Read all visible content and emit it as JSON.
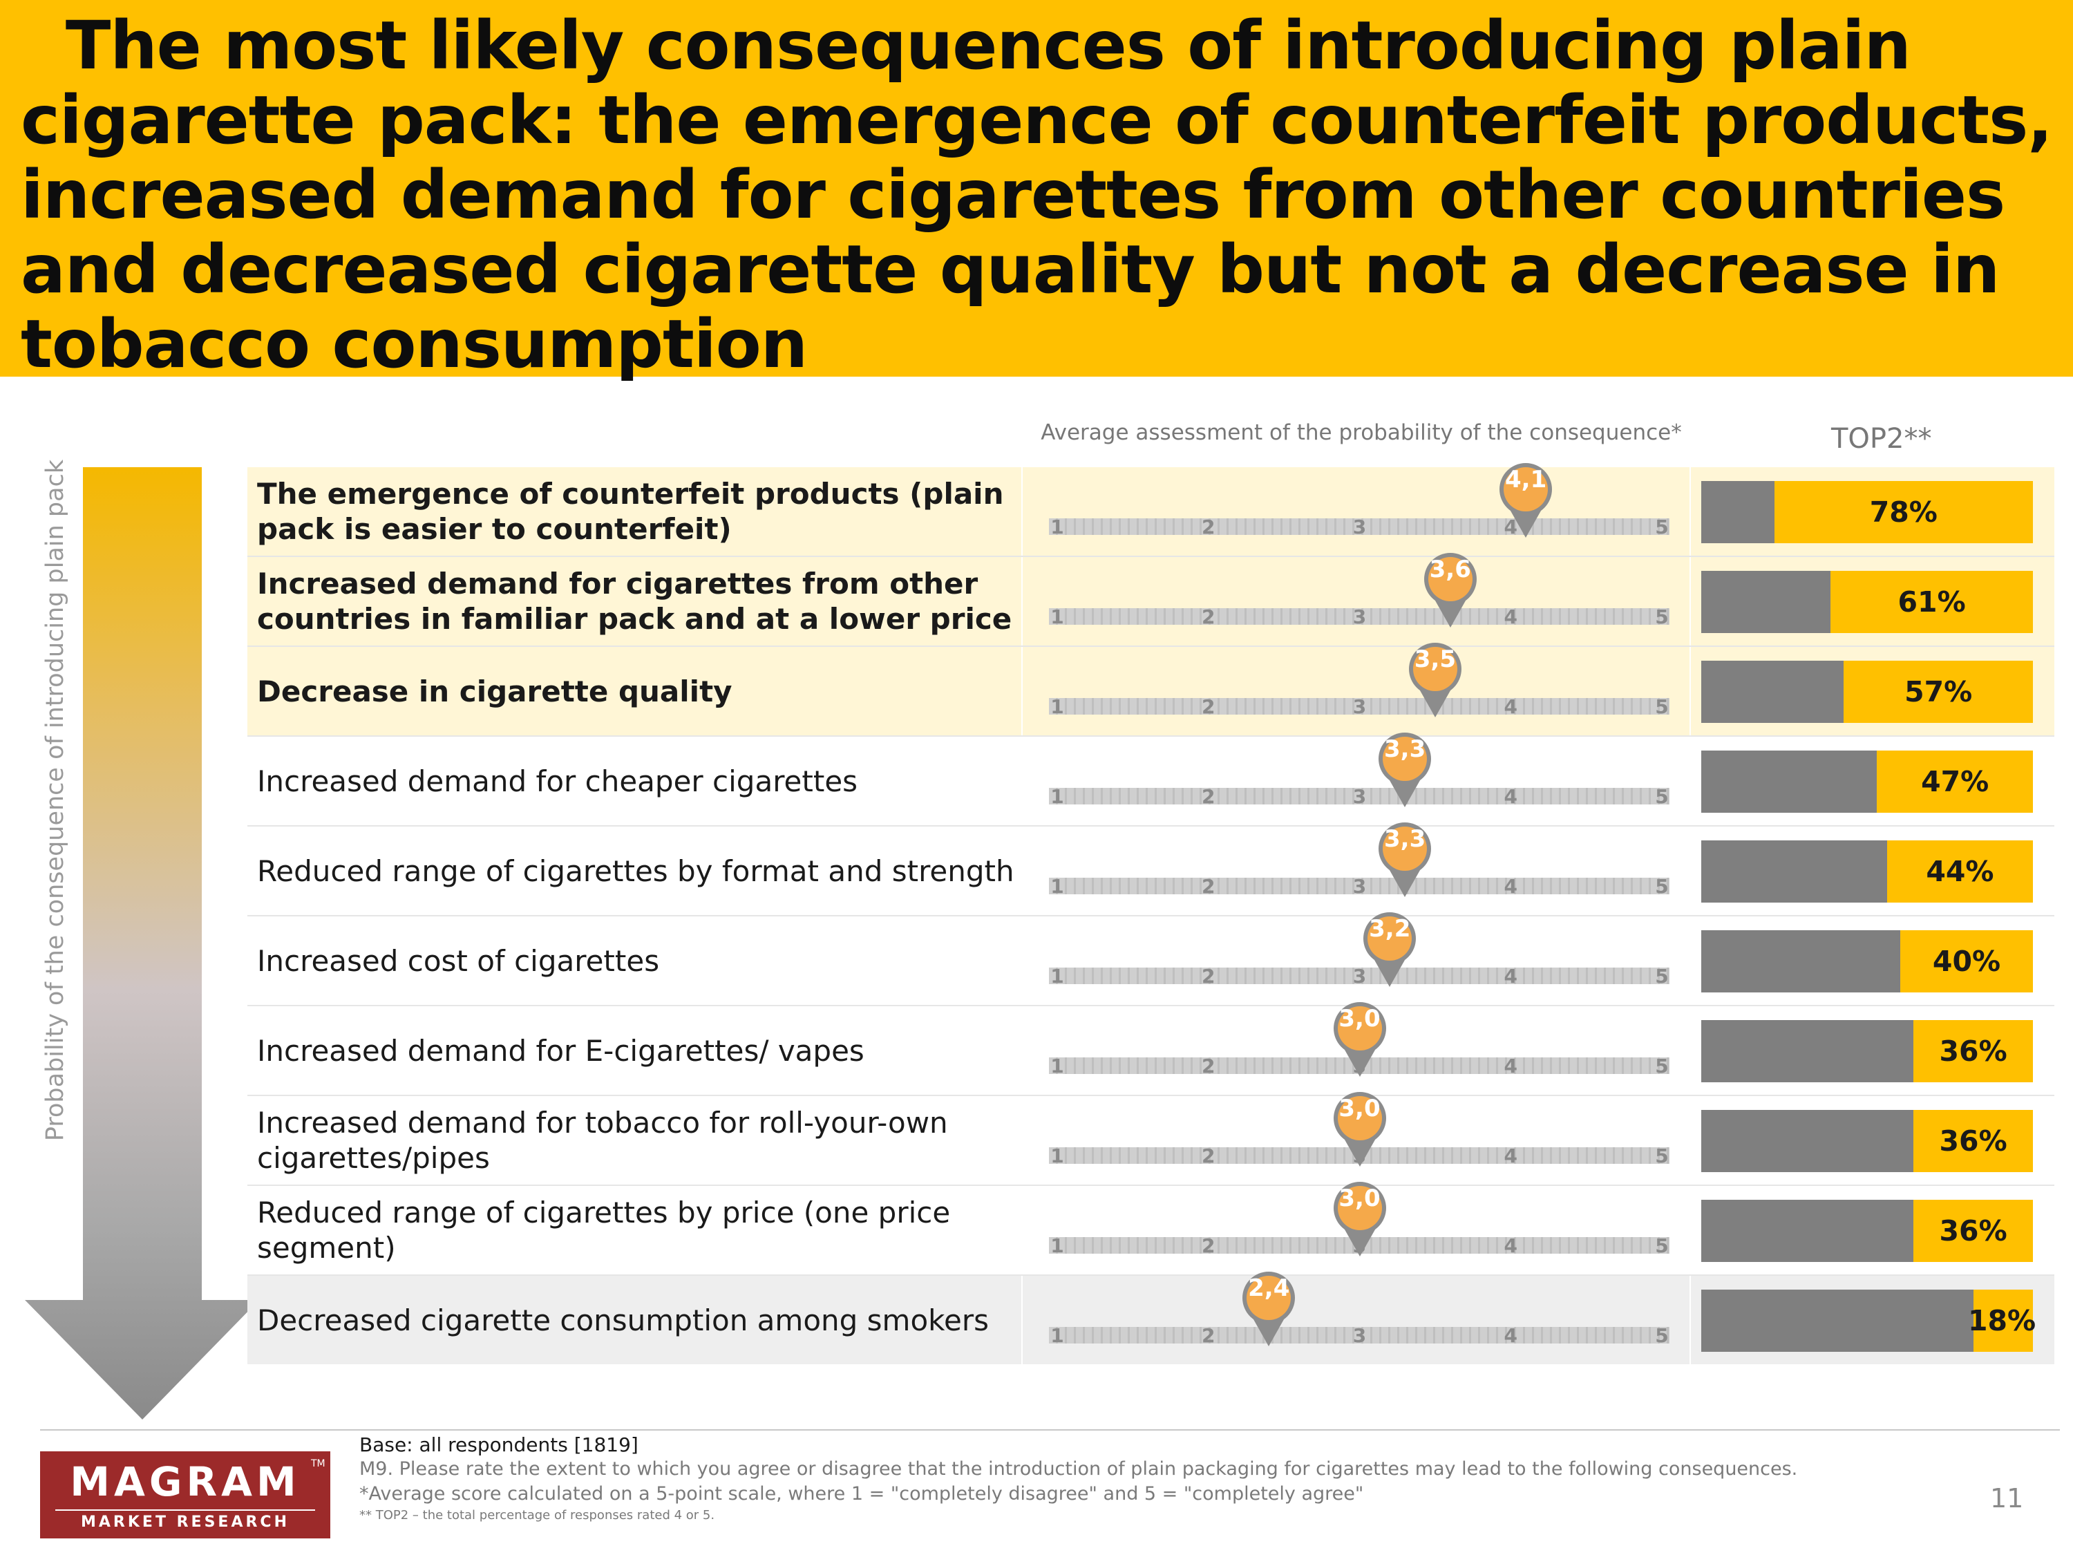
{
  "title": "  The most likely consequences of introducing plain cigarette pack: the emergence of counterfeit products, increased demand for cigarettes from other countries and decreased cigarette quality but not a decrease in tobacco consumption",
  "vertical_label": "Probability of the consequence of introducing plain pack",
  "chart_data": {
    "type": "bar",
    "avg_header": "Average assessment of the probability of the consequence*",
    "top2_header": "TOP2**",
    "scale_ticks": [
      "1",
      "2",
      "3",
      "4",
      "5"
    ],
    "scale_range": [
      1,
      5
    ],
    "categories": [
      "The emergence of counterfeit products (plain pack is easier to counterfeit)",
      "Increased demand for cigarettes from other countries in familiar pack and at a lower price",
      "Decrease in cigarette quality",
      "Increased demand for cheaper cigarettes",
      "Reduced range of cigarettes by format and strength",
      "Increased cost of cigarettes",
      "Increased demand for E-cigarettes/ vapes",
      "Increased demand for tobacco for roll-your-own cigarettes/pipes",
      "Reduced range of cigarettes by price (one price segment)",
      "Decreased cigarette consumption among smokers"
    ],
    "series": [
      {
        "name": "Average assessment of the probability of the consequence*",
        "values": [
          4.1,
          3.6,
          3.5,
          3.3,
          3.3,
          3.2,
          3.0,
          3.0,
          3.0,
          2.4
        ],
        "labels": [
          "4,1",
          "3,6",
          "3,5",
          "3,3",
          "3,3",
          "3,2",
          "3,0",
          "3,0",
          "3,0",
          "2,4"
        ]
      },
      {
        "name": "TOP2**",
        "values": [
          78,
          61,
          57,
          47,
          44,
          40,
          36,
          36,
          36,
          18
        ],
        "labels": [
          "78%",
          "61%",
          "57%",
          "47%",
          "44%",
          "40%",
          "36%",
          "36%",
          "36%",
          "18%"
        ]
      }
    ],
    "bold_rows": [
      0,
      1,
      2
    ],
    "highlight_rows": [
      0,
      1,
      2
    ],
    "gray_rows": [
      9
    ]
  },
  "colors": {
    "accent": "#ffc000",
    "highlight_row": "#fff6d6",
    "gray_row": "#eeeeee",
    "bar_gray": "#7f7f7f",
    "pin_orange": "#f5a94a",
    "pin_gray": "#8c8c8c",
    "logo": "#9c2a2a"
  },
  "logo": {
    "name": "MAGRAM",
    "sub": "MARKET RESEARCH",
    "tm": "TM"
  },
  "footer": {
    "base": "Base: all respondents [1819]",
    "m9": "M9. Please rate the extent to which you agree or disagree that the introduction of plain packaging for cigarettes may lead to the following consequences.",
    "avg_note": "*Average score calculated on a 5-point scale, where 1 = \"completely disagree\" and 5 = \"completely agree\"",
    "top2_note": "** TOP2 – the total percentage of responses rated 4 or 5."
  },
  "page_number": "11"
}
